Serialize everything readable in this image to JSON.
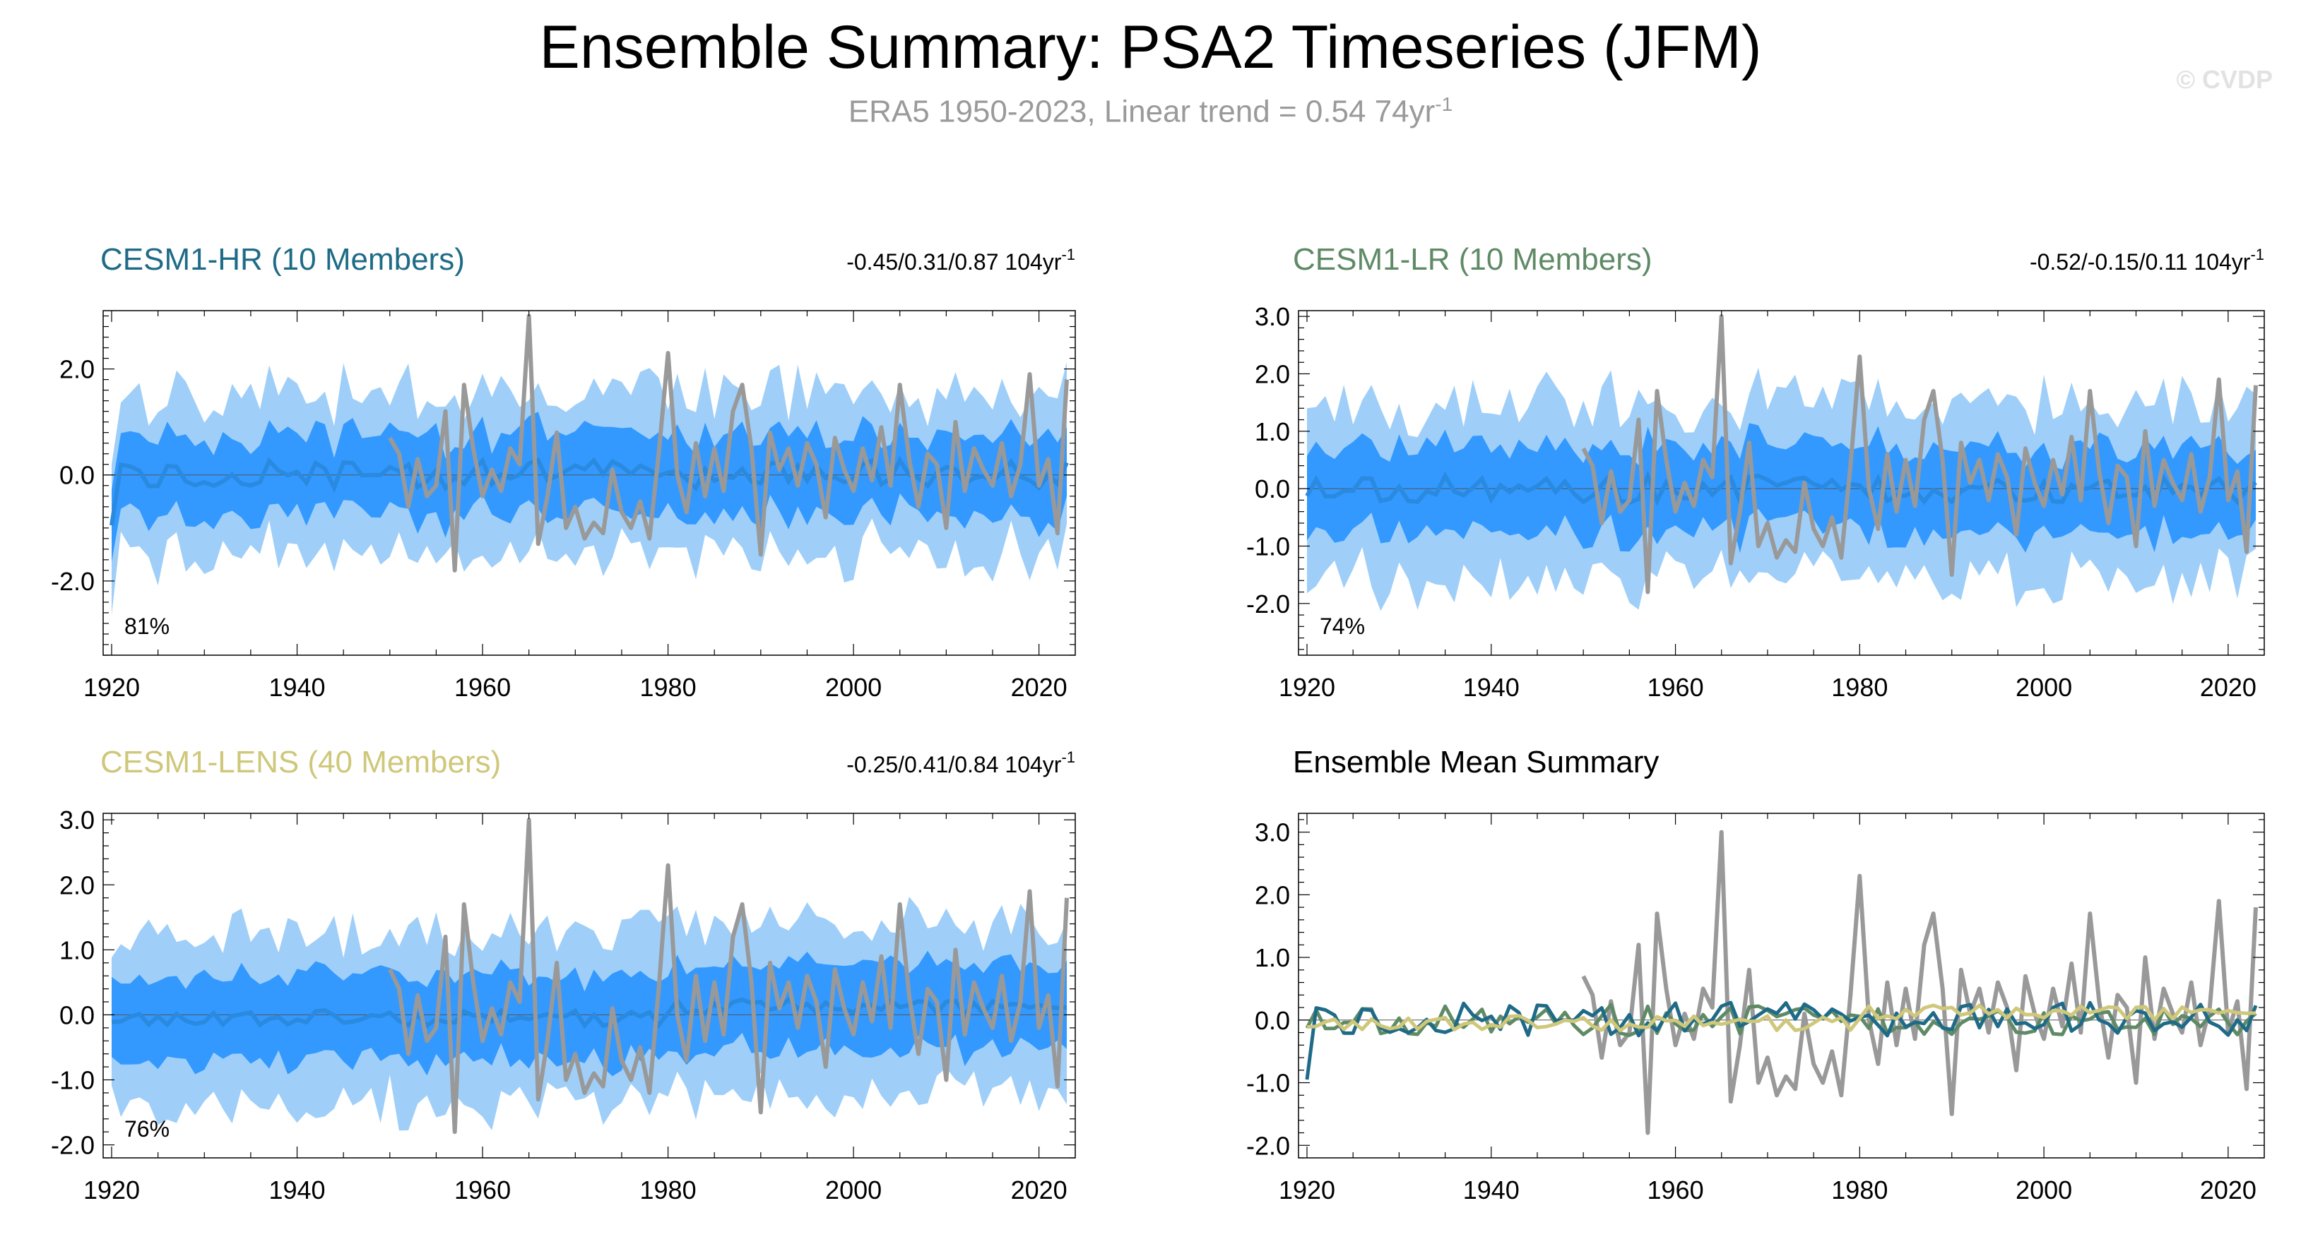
{
  "header": {
    "title": "Ensemble Summary: PSA2 Timeseries (JFM)",
    "subtitle": "ERA5 1950-2023, Linear trend = 0.54 74yr",
    "subtitle_sup": "-1",
    "watermark": "© CVDP"
  },
  "colors": {
    "hr": "#1f6b87",
    "lr": "#5f8a66",
    "lens": "#cfc77a",
    "obs": "#999999",
    "band_outer": "#9fcff8",
    "band_inner": "#3399ff",
    "ens_mean": "#2a8ae0"
  },
  "chart_data": [
    {
      "type": "area",
      "name": "hr",
      "title": "CESM1-HR (10 Members)",
      "stats": "-0.45/0.31/0.87 104yr",
      "stats_sup": "-1",
      "percent": "81%",
      "ylim": [
        -3.4,
        3.1
      ],
      "yticks": [
        -2.0,
        0.0,
        2.0
      ],
      "ytick_labels": [
        "-2.0",
        "0.0",
        "2.0"
      ],
      "xlim": [
        1920,
        2023
      ],
      "xticks": [
        1920,
        1940,
        1960,
        1980,
        2000,
        2020
      ],
      "ensemble_years": [
        1920,
        2023
      ],
      "obs_years": [
        1950,
        2023
      ],
      "seed": 11,
      "ens_mean_amp": 0.28,
      "inner_spread": 0.75,
      "outer_spread": 1.55
    },
    {
      "type": "area",
      "name": "lr",
      "title": "CESM1-LR (10 Members)",
      "stats": "-0.52/-0.15/0.11 104yr",
      "stats_sup": "-1",
      "percent": "74%",
      "ylim": [
        -2.9,
        3.1
      ],
      "yticks": [
        -2.0,
        -1.0,
        0.0,
        1.0,
        2.0,
        3.0
      ],
      "ytick_labels": [
        "-2.0",
        "-1.0",
        "0.0",
        "1.0",
        "2.0",
        "3.0"
      ],
      "xlim": [
        1920,
        2023
      ],
      "xticks": [
        1920,
        1940,
        1960,
        1980,
        2000,
        2020
      ],
      "ensemble_years": [
        1920,
        2023
      ],
      "obs_years": [
        1950,
        2023
      ],
      "seed": 23,
      "ens_mean_amp": 0.25,
      "inner_spread": 0.75,
      "outer_spread": 1.55
    },
    {
      "type": "area",
      "name": "lens",
      "title": "CESM1-LENS (40 Members)",
      "stats": "-0.25/0.41/0.84 104yr",
      "stats_sup": "-1",
      "percent": "76%",
      "ylim": [
        -2.2,
        3.1
      ],
      "yticks": [
        -2.0,
        -1.0,
        0.0,
        1.0,
        2.0,
        3.0
      ],
      "ytick_labels": [
        "-2.0",
        "-1.0",
        "0.0",
        "1.0",
        "2.0",
        "3.0"
      ],
      "xlim": [
        1920,
        2023
      ],
      "xticks": [
        1920,
        1940,
        1960,
        1980,
        2000,
        2020
      ],
      "ensemble_years": [
        1920,
        2023
      ],
      "obs_years": [
        1950,
        2023
      ],
      "seed": 37,
      "ens_mean_amp": 0.12,
      "inner_spread": 0.65,
      "outer_spread": 1.35
    },
    {
      "type": "line",
      "name": "summary",
      "title": "Ensemble Mean Summary",
      "ylim": [
        -2.2,
        3.3
      ],
      "yticks": [
        -2.0,
        -1.0,
        0.0,
        1.0,
        2.0,
        3.0
      ],
      "ytick_labels": [
        "-2.0",
        "-1.0",
        "0.0",
        "1.0",
        "2.0",
        "3.0"
      ],
      "xlim": [
        1920,
        2023
      ],
      "xticks": [
        1920,
        1940,
        1960,
        1980,
        2000,
        2020
      ],
      "series": [
        "hr",
        "lr",
        "lens",
        "obs"
      ]
    }
  ],
  "obs_series": {
    "name": "ERA5",
    "years_start": 1950,
    "values": [
      0.7,
      0.4,
      -0.6,
      0.3,
      -0.4,
      -0.2,
      1.2,
      -1.8,
      1.7,
      0.5,
      -0.4,
      0.1,
      -0.3,
      0.5,
      0.2,
      3.0,
      -1.3,
      -0.4,
      0.8,
      -1.0,
      -0.6,
      -1.2,
      -0.9,
      -1.1,
      0.1,
      -0.7,
      -1.0,
      -0.5,
      -1.2,
      0.4,
      2.3,
      0.0,
      -0.7,
      0.6,
      -0.4,
      0.5,
      -0.3,
      1.2,
      1.7,
      0.5,
      -1.5,
      0.8,
      0.1,
      0.5,
      -0.2,
      0.6,
      0.2,
      -0.8,
      0.7,
      0.1,
      -0.3,
      0.5,
      -0.1,
      0.9,
      -0.2,
      1.7,
      0.3,
      -0.6,
      0.4,
      0.2,
      -1.0,
      1.0,
      -0.3,
      0.5,
      0.1,
      -0.2,
      0.6,
      -0.4,
      0.2,
      1.9,
      -0.2,
      0.3,
      -1.1,
      1.8
    ]
  }
}
